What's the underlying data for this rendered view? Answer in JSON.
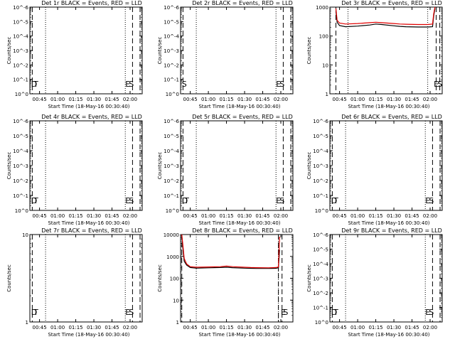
{
  "figure": {
    "xlabel": "Start Time (18-May-16 00:30:40)",
    "ylabel": "Counts/sec",
    "x_tick_labels": [
      "00:45",
      "01:00",
      "01:15",
      "01:30",
      "01:45",
      "02:00"
    ]
  },
  "chart_data": [
    {
      "id": "det1r",
      "type": "line",
      "title": "Det 1r BLACK = Events, RED = LLD",
      "xlim_minutes_from_0030": [
        7,
        100
      ],
      "y_scale": "log",
      "y_tick_labels": [
        "10^0",
        "10^-1",
        "10^-2",
        "10^-3",
        "10^-4",
        "10^-5",
        "10^-6"
      ],
      "flat_zero_data": true,
      "annotations": [
        {
          "text": "E",
          "minutes": 86
        },
        {
          "text": "S",
          "minutes": 89
        },
        {
          "text": "D",
          "minutes": 8
        },
        {
          "text": "T",
          "minutes": 10
        }
      ],
      "dashed_minutes": [
        9,
        92,
        103
      ],
      "dotted_minutes": [
        20,
        86
      ]
    },
    {
      "id": "det2r",
      "type": "line",
      "title": "Det 2r BLACK = Events, RED = LLD",
      "xlim_minutes_from_0030": [
        7,
        100
      ],
      "y_scale": "log",
      "y_tick_labels": [
        "10^0",
        "10^-1",
        "10^-2",
        "10^-3",
        "10^-4",
        "10^-5",
        "10^-6"
      ],
      "flat_zero_data": true,
      "annotations": [
        {
          "text": "S",
          "minutes": 8
        },
        {
          "text": "E",
          "minutes": 86
        },
        {
          "text": "S",
          "minutes": 89
        }
      ],
      "dashed_minutes": [
        9,
        92,
        103
      ],
      "dotted_minutes": [
        20,
        86
      ]
    },
    {
      "id": "det3r",
      "type": "line",
      "title": "Det 3r BLACK = Events, RED = LLD",
      "xlim_minutes_from_0030": [
        7,
        100
      ],
      "y_scale": "log",
      "y_tick_labels": [
        "1",
        "10",
        "100",
        "1000"
      ],
      "y_range": [
        1,
        1000
      ],
      "annotations": [
        {
          "text": "E",
          "minutes": 93
        },
        {
          "text": "S",
          "minutes": 96
        }
      ],
      "dashed_minutes": [
        12,
        95,
        98
      ],
      "dotted_minutes": [
        22,
        88
      ],
      "series": [
        {
          "name": "Events",
          "color": "#000000",
          "x": [
            12,
            13,
            15,
            20,
            30,
            40,
            45,
            50,
            60,
            65,
            70,
            80,
            88,
            92,
            93,
            94
          ],
          "y": [
            700,
            300,
            230,
            210,
            220,
            240,
            260,
            250,
            225,
            215,
            210,
            205,
            205,
            210,
            500,
            900
          ]
        },
        {
          "name": "LLD",
          "color": "#e00000",
          "x": [
            12,
            13,
            15,
            20,
            30,
            40,
            45,
            50,
            60,
            65,
            70,
            80,
            88,
            92,
            93,
            94
          ],
          "y": [
            900,
            350,
            280,
            260,
            270,
            290,
            300,
            290,
            270,
            260,
            255,
            250,
            250,
            260,
            600,
            1000
          ]
        }
      ]
    },
    {
      "id": "det4r",
      "type": "line",
      "title": "Det 4r BLACK = Events, RED = LLD",
      "xlim_minutes_from_0030": [
        7,
        100
      ],
      "y_scale": "log",
      "y_tick_labels": [
        "10^0",
        "10^-1",
        "10^-2",
        "10^-3",
        "10^-4",
        "10^-5",
        "10^-6"
      ],
      "flat_zero_data": true,
      "annotations": [
        {
          "text": "E",
          "minutes": 86
        },
        {
          "text": "S",
          "minutes": 89
        },
        {
          "text": "D",
          "minutes": 8
        },
        {
          "text": "T",
          "minutes": 10
        }
      ],
      "dashed_minutes": [
        9,
        92,
        103
      ],
      "dotted_minutes": [
        20,
        86
      ]
    },
    {
      "id": "det5r",
      "type": "line",
      "title": "Det 5r BLACK = Events, RED = LLD",
      "xlim_minutes_from_0030": [
        7,
        100
      ],
      "y_scale": "log",
      "y_tick_labels": [
        "10^0",
        "10^-1",
        "10^-2",
        "10^-3",
        "10^-4",
        "10^-5",
        "10^-6"
      ],
      "flat_zero_data": true,
      "annotations": [
        {
          "text": "D",
          "minutes": 8
        },
        {
          "text": "T",
          "minutes": 10
        },
        {
          "text": "E",
          "minutes": 86
        },
        {
          "text": "S",
          "minutes": 89
        }
      ],
      "dashed_minutes": [
        9,
        92,
        103
      ],
      "dotted_minutes": [
        20,
        86
      ]
    },
    {
      "id": "det6r",
      "type": "line",
      "title": "Det 6r BLACK = Events, RED = LLD",
      "xlim_minutes_from_0030": [
        7,
        100
      ],
      "y_scale": "log",
      "y_tick_labels": [
        "10^0",
        "10^-1",
        "10^-2",
        "10^-3",
        "10^-4",
        "10^-5",
        "10^-6"
      ],
      "flat_zero_data": true,
      "annotations": [
        {
          "text": "D",
          "minutes": 8
        },
        {
          "text": "T",
          "minutes": 10
        },
        {
          "text": "E",
          "minutes": 86
        },
        {
          "text": "S",
          "minutes": 89
        }
      ],
      "dashed_minutes": [
        9,
        92,
        103
      ],
      "dotted_minutes": [
        20,
        86
      ]
    },
    {
      "id": "det7r",
      "type": "line",
      "title": "Det 7r BLACK = Events, RED = LLD",
      "xlim_minutes_from_0030": [
        7,
        100
      ],
      "y_scale": "log",
      "y_tick_labels": [
        "1",
        "10"
      ],
      "y_range": [
        1,
        10
      ],
      "flat_zero_data": true,
      "annotations": [
        {
          "text": "D",
          "minutes": 8
        },
        {
          "text": "T",
          "minutes": 10
        },
        {
          "text": "E",
          "minutes": 86
        },
        {
          "text": "S",
          "minutes": 89
        }
      ],
      "dashed_minutes": [
        9,
        92,
        103
      ],
      "dotted_minutes": [
        20,
        86
      ]
    },
    {
      "id": "det8r",
      "type": "line",
      "title": "Det 8r BLACK = Events, RED = LLD",
      "xlim_minutes_from_0030": [
        7,
        100
      ],
      "y_scale": "log",
      "y_tick_labels": [
        "1",
        "10",
        "100",
        "1000",
        "10000"
      ],
      "y_range": [
        1,
        10000
      ],
      "annotations": [
        {
          "text": "E",
          "minutes": 90
        },
        {
          "text": "S",
          "minutes": 92
        }
      ],
      "dashed_minutes": [
        8,
        88,
        91
      ],
      "dotted_minutes": [
        20,
        88
      ],
      "series": [
        {
          "name": "Events",
          "color": "#000000",
          "x": [
            8,
            9,
            10,
            12,
            15,
            20,
            30,
            40,
            45,
            50,
            60,
            65,
            70,
            80,
            86,
            88,
            89
          ],
          "y": [
            9000,
            2000,
            600,
            400,
            310,
            290,
            300,
            310,
            320,
            305,
            290,
            285,
            280,
            280,
            285,
            300,
            2000
          ]
        },
        {
          "name": "LLD",
          "color": "#e00000",
          "x": [
            8,
            9,
            10,
            12,
            15,
            20,
            30,
            40,
            45,
            50,
            60,
            65,
            70,
            80,
            86,
            88,
            89
          ],
          "y": [
            10000,
            3000,
            800,
            450,
            340,
            320,
            330,
            340,
            360,
            340,
            320,
            310,
            305,
            300,
            310,
            330,
            8000
          ]
        }
      ]
    },
    {
      "id": "det9r",
      "type": "line",
      "title": "Det 9r BLACK = Events, RED = LLD",
      "xlim_minutes_from_0030": [
        7,
        100
      ],
      "y_scale": "log",
      "y_tick_labels": [
        "10^0",
        "10^-1",
        "10^-2",
        "10^-3",
        "10^-4",
        "10^-5",
        "10^-6"
      ],
      "flat_zero_data": true,
      "annotations": [
        {
          "text": "D",
          "minutes": 8
        },
        {
          "text": "T",
          "minutes": 10
        },
        {
          "text": "E",
          "minutes": 86
        },
        {
          "text": "S",
          "minutes": 89
        }
      ],
      "dashed_minutes": [
        9,
        92,
        103
      ],
      "dotted_minutes": [
        20,
        86
      ]
    }
  ]
}
